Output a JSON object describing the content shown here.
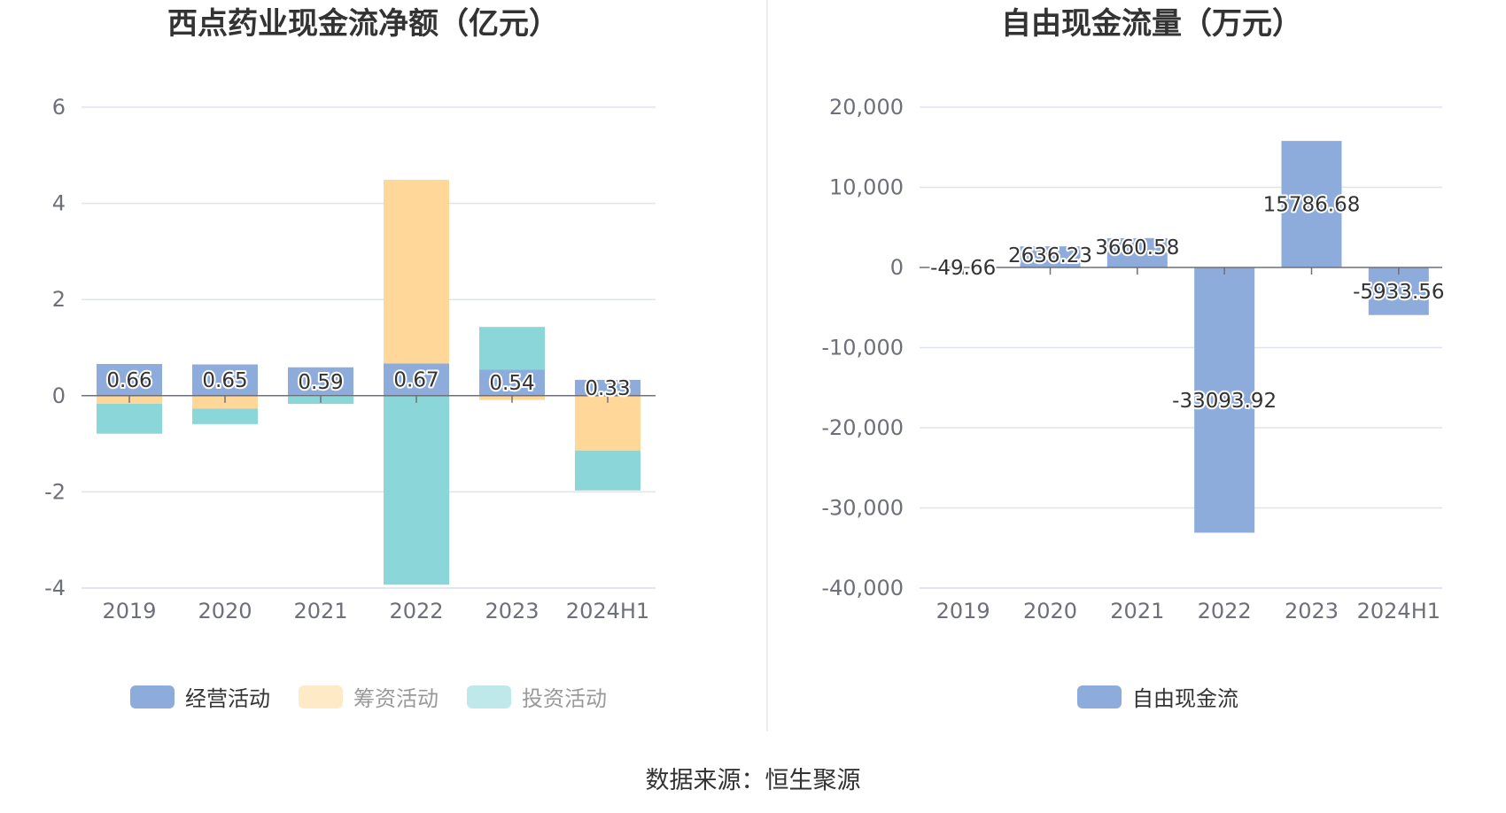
{
  "source": "数据来源：恒生聚源",
  "chart_data": [
    {
      "type": "bar",
      "stacked": true,
      "title": "西点药业现金流净额（亿元）",
      "categories": [
        "2019",
        "2020",
        "2021",
        "2022",
        "2023",
        "2024H1"
      ],
      "ylim": [
        -4,
        6
      ],
      "yticks": [
        -4,
        -2,
        0,
        2,
        4,
        6
      ],
      "grid": true,
      "legend_position": "bottom",
      "series": [
        {
          "name": "经营活动",
          "color": "#8eacdb",
          "values": [
            0.66,
            0.65,
            0.59,
            0.67,
            0.54,
            0.33
          ],
          "labels": [
            "0.66",
            "0.65",
            "0.59",
            "0.67",
            "0.54",
            "0.33"
          ]
        },
        {
          "name": "筹资活动",
          "color": "#ffd899",
          "values": [
            -0.17,
            -0.27,
            -0.02,
            3.82,
            -0.09,
            -1.14
          ]
        },
        {
          "name": "投资活动",
          "color": "#8ad6d8",
          "values": [
            -0.62,
            -0.32,
            -0.15,
            -3.93,
            0.89,
            -0.83
          ]
        }
      ]
    },
    {
      "type": "bar",
      "title": "自由现金流量（万元）",
      "categories": [
        "2019",
        "2020",
        "2021",
        "2022",
        "2023",
        "2024H1"
      ],
      "ylim": [
        -40000,
        20000
      ],
      "yticks": [
        -40000,
        -30000,
        -20000,
        -10000,
        0,
        10000,
        20000
      ],
      "ytick_labels": [
        "-40,000",
        "-30,000",
        "-20,000",
        "-10,000",
        "0",
        "10,000",
        "20,000"
      ],
      "grid": true,
      "legend_position": "bottom",
      "series": [
        {
          "name": "自由现金流",
          "color": "#8eacdb",
          "values": [
            -49.66,
            2636.23,
            3660.58,
            -33093.92,
            15786.68,
            -5933.56
          ],
          "labels": [
            "-49.66",
            "2636.23",
            "3660.58",
            "-33093.92",
            "15786.68",
            "-5933.56"
          ]
        }
      ]
    }
  ]
}
